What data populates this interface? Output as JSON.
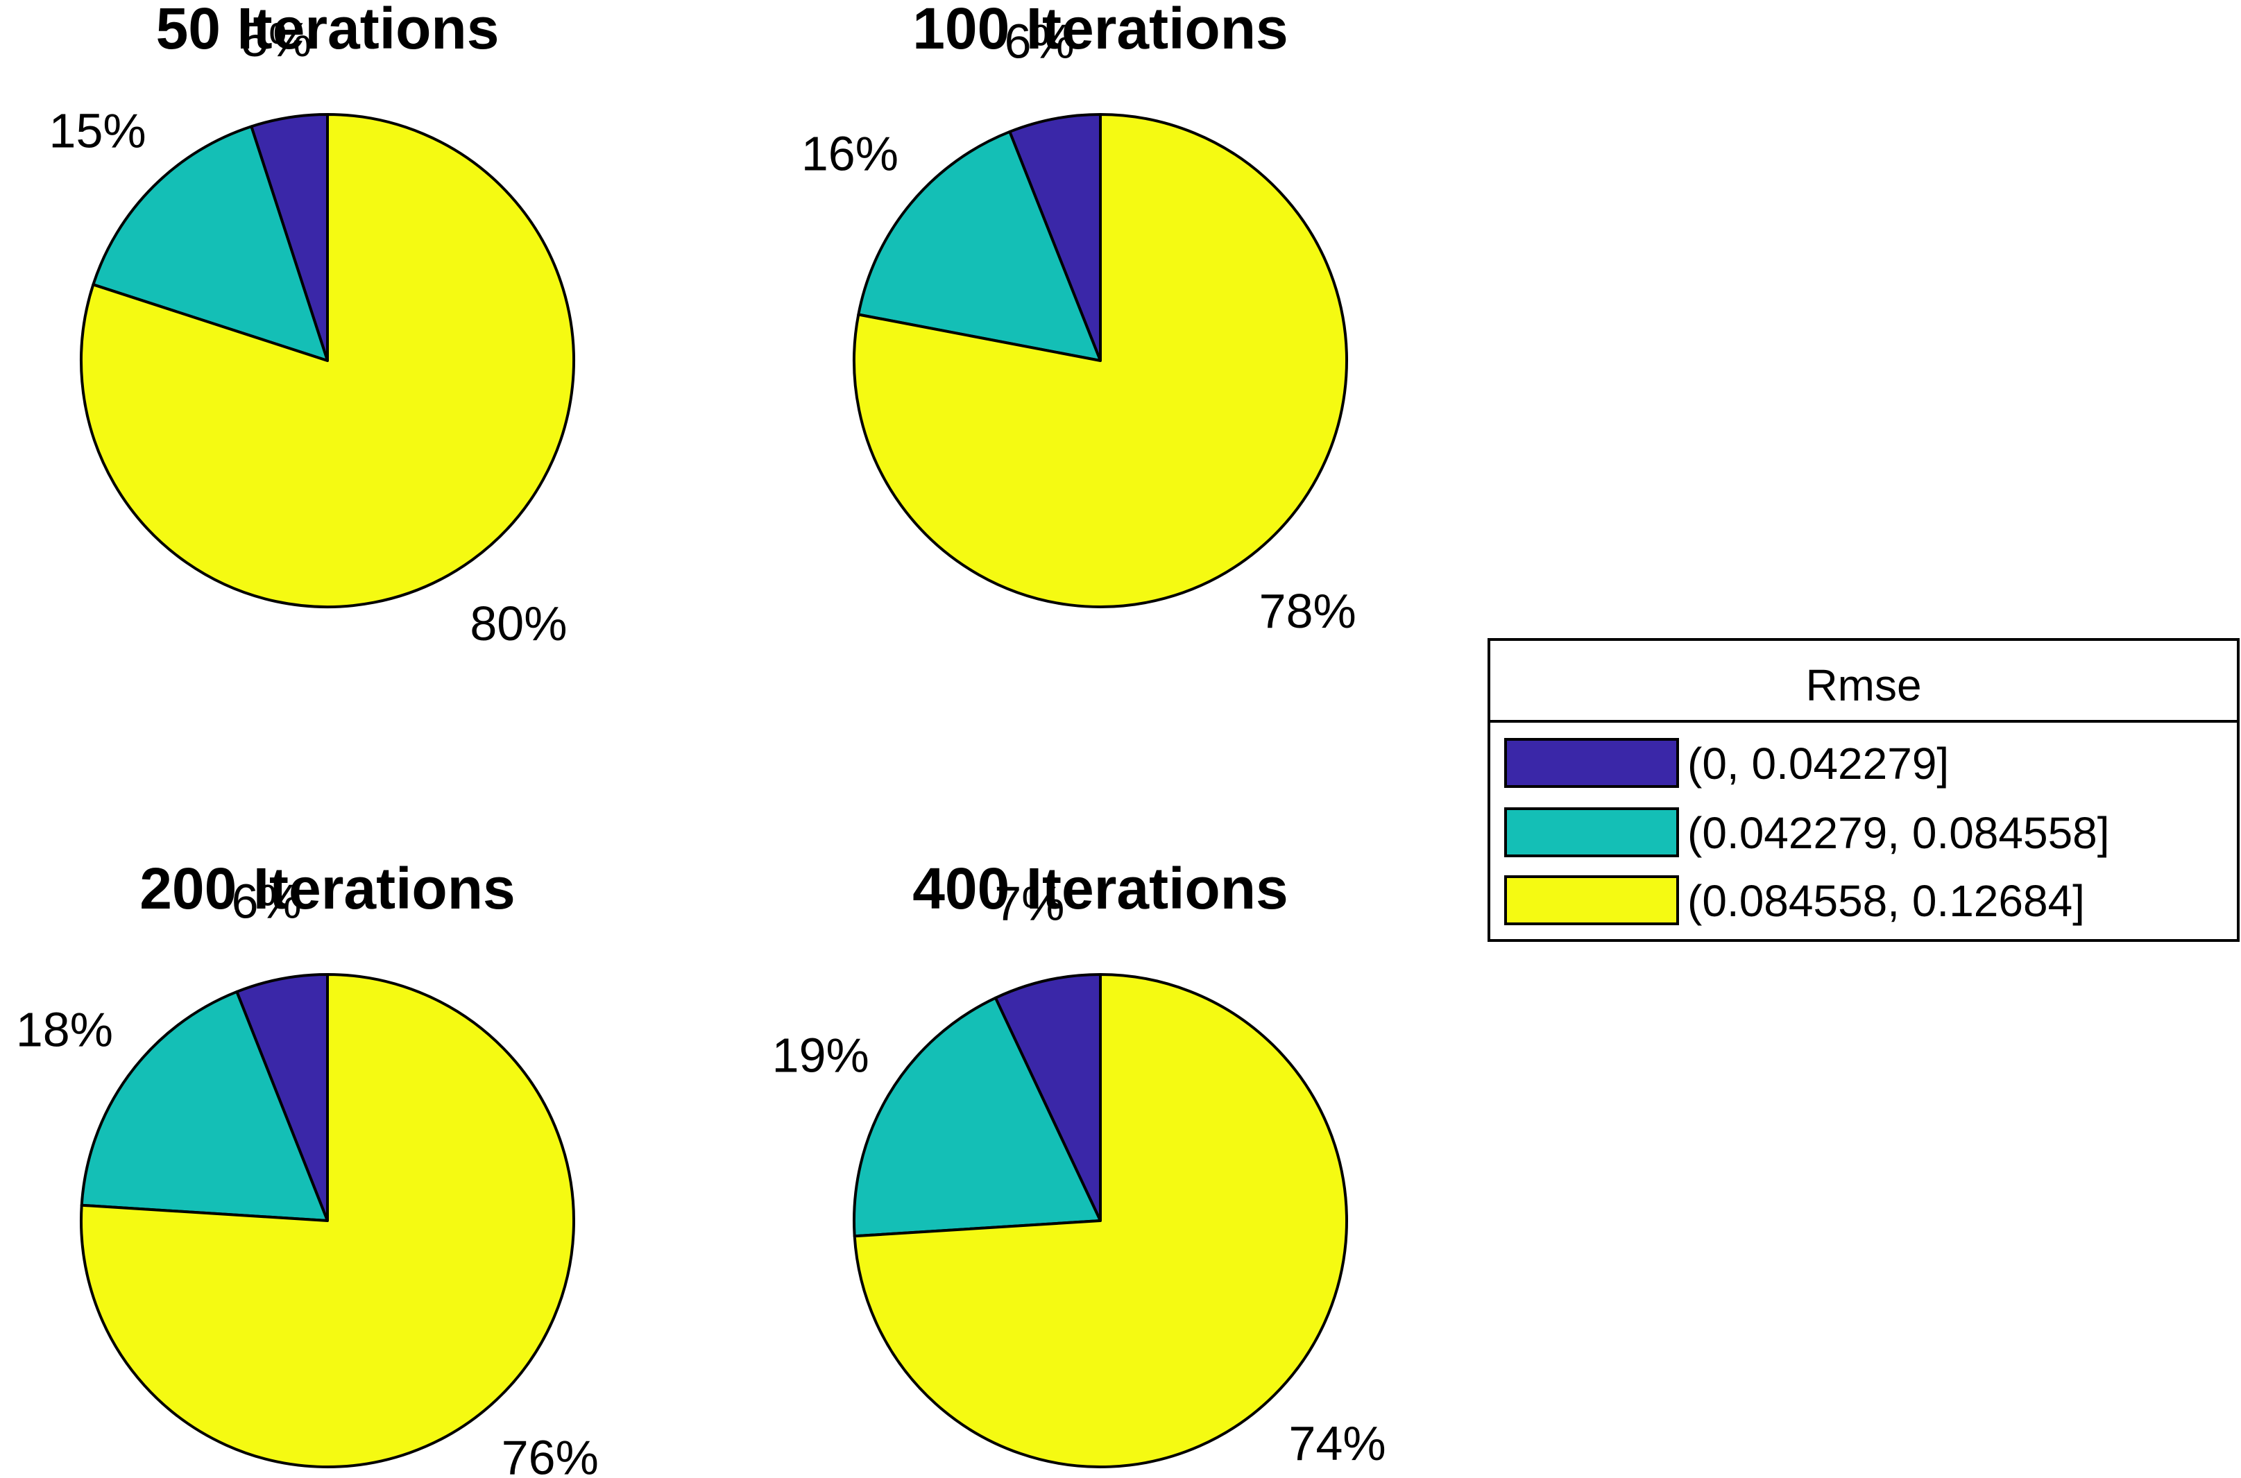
{
  "chart_data": {
    "type": "pie",
    "colors": [
      "#3a27a8",
      "#14bfb6",
      "#f5fa12"
    ],
    "legend": {
      "title": "Rmse",
      "placement": "right",
      "entries": [
        "(0, 0.042279]",
        "(0.042279, 0.084558]",
        "(0.084558, 0.12684]"
      ]
    },
    "pies": [
      {
        "title": "50 Iterations",
        "values": [
          5,
          15,
          80
        ],
        "labels": [
          "5%",
          "15%",
          "80%"
        ]
      },
      {
        "title": "100 Iterations",
        "values": [
          6,
          16,
          78
        ],
        "labels": [
          "6%",
          "16%",
          "78%"
        ]
      },
      {
        "title": "200 Iterations",
        "values": [
          6,
          18,
          76
        ],
        "labels": [
          "6%",
          "18%",
          "76%"
        ]
      },
      {
        "title": "400 Iterations",
        "values": [
          7,
          19,
          74
        ],
        "labels": [
          "7%",
          "19%",
          "74%"
        ]
      }
    ]
  }
}
